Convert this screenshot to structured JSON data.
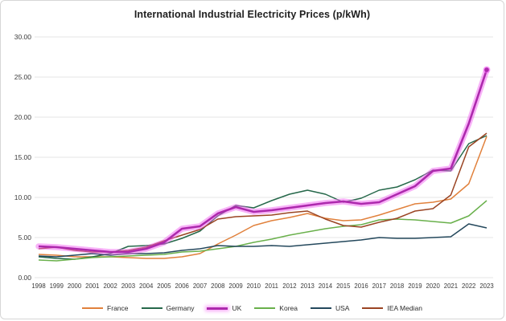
{
  "page": {
    "title": "International Industrial Electricity Prices (p/kWh)"
  },
  "axes": {
    "y_tick_labels": [
      "30.00",
      "25.00",
      "20.00",
      "15.00",
      "10.00",
      "5.00",
      "0.00"
    ]
  },
  "chart_data": {
    "type": "line",
    "title": "International Industrial Electricity Prices (p/kWh)",
    "xlabel": "",
    "ylabel": "",
    "ylim": [
      0,
      30
    ],
    "y_tick_step": 5,
    "grid": "horizontal",
    "legend_position": "bottom",
    "x": [
      1998,
      1999,
      2000,
      2001,
      2002,
      2003,
      2004,
      2005,
      2006,
      2007,
      2008,
      2009,
      2010,
      2011,
      2012,
      2013,
      2014,
      2015,
      2016,
      2017,
      2018,
      2019,
      2020,
      2021,
      2022,
      2023
    ],
    "series": [
      {
        "name": "France",
        "color": "#e1813c",
        "highlight": false,
        "values": [
          2.9,
          2.8,
          2.6,
          2.6,
          2.6,
          2.5,
          2.4,
          2.4,
          2.6,
          3.0,
          4.2,
          5.3,
          6.5,
          7.1,
          7.5,
          8.0,
          7.4,
          7.1,
          7.2,
          7.8,
          8.5,
          9.2,
          9.4,
          9.8,
          11.7,
          17.6
        ]
      },
      {
        "name": "Germany",
        "color": "#26684a",
        "highlight": false,
        "values": [
          2.6,
          2.4,
          2.3,
          2.6,
          3.0,
          3.9,
          4.0,
          4.2,
          4.9,
          5.8,
          7.7,
          9.0,
          8.7,
          9.6,
          10.4,
          10.9,
          10.4,
          9.4,
          9.9,
          10.9,
          11.3,
          12.2,
          13.4,
          13.3,
          16.7,
          17.7
        ]
      },
      {
        "name": "UK",
        "color": "#ad29ad",
        "highlight": true,
        "glow_color": "#f266f2",
        "values": [
          3.9,
          3.8,
          3.6,
          3.4,
          3.2,
          3.2,
          3.6,
          4.4,
          6.1,
          6.4,
          8.0,
          8.8,
          8.2,
          8.4,
          8.7,
          9.0,
          9.3,
          9.5,
          9.2,
          9.4,
          10.4,
          11.4,
          13.3,
          13.6,
          19.2,
          25.9
        ]
      },
      {
        "name": "Korea",
        "color": "#69b04b",
        "highlight": false,
        "values": [
          2.2,
          2.1,
          2.3,
          2.5,
          2.6,
          2.7,
          2.8,
          2.9,
          3.2,
          3.3,
          3.6,
          3.9,
          4.4,
          4.8,
          5.3,
          5.7,
          6.1,
          6.4,
          6.6,
          7.2,
          7.3,
          7.2,
          7.0,
          6.8,
          7.7,
          9.6
        ]
      },
      {
        "name": "USA",
        "color": "#24485c",
        "highlight": false,
        "values": [
          2.7,
          2.6,
          2.8,
          3.0,
          2.8,
          3.0,
          3.0,
          3.1,
          3.4,
          3.6,
          4.0,
          3.9,
          3.9,
          4.0,
          3.9,
          4.1,
          4.3,
          4.5,
          4.7,
          5.0,
          4.9,
          4.9,
          5.0,
          5.1,
          6.7,
          6.2
        ]
      },
      {
        "name": "IEA Median",
        "color": "#9a4423",
        "highlight": false,
        "values": [
          3.6,
          3.8,
          3.4,
          3.2,
          3.2,
          3.4,
          3.8,
          4.6,
          5.3,
          6.0,
          7.3,
          7.6,
          7.7,
          7.8,
          8.1,
          8.3,
          7.3,
          6.5,
          6.3,
          6.9,
          7.4,
          8.3,
          8.6,
          10.3,
          16.3,
          18.0
        ]
      }
    ]
  }
}
